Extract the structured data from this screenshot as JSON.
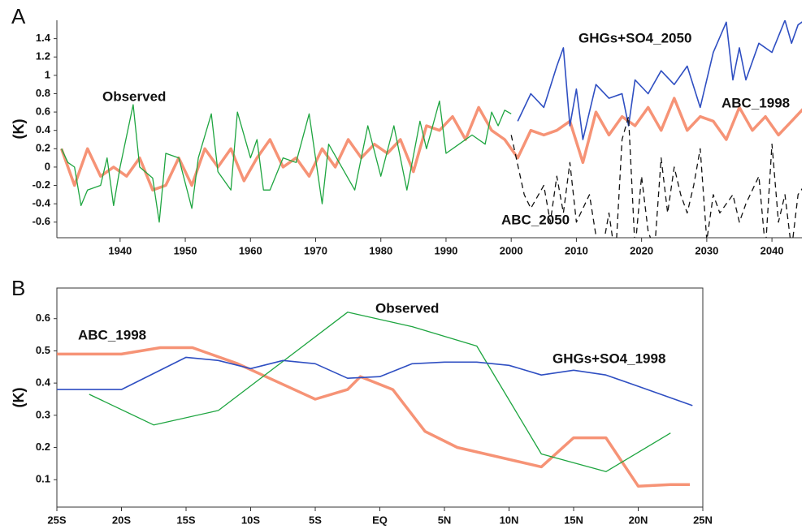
{
  "chart_data": [
    {
      "type": "line",
      "title": "A",
      "ylabel": "(K)",
      "xlim": [
        1930.3,
        2044.6
      ],
      "xticks": [
        1940,
        1950,
        1960,
        1970,
        1980,
        1990,
        2000,
        2010,
        2020,
        2030,
        2040
      ],
      "ylim": [
        -0.77,
        1.6
      ],
      "yticks": [
        -0.6,
        -0.4,
        -0.2,
        0,
        0.2,
        0.4,
        0.6,
        0.8,
        1,
        1.2,
        1.4
      ],
      "series": [
        {
          "name": "ABC_1998",
          "color": "#f4805e",
          "linestyle": "solid",
          "x": [
            1931,
            1933,
            1935,
            1937,
            1939,
            1941,
            1943,
            1945,
            1947,
            1949,
            1951,
            1953,
            1955,
            1957,
            1959,
            1961,
            1963,
            1965,
            1967,
            1969,
            1971,
            1973,
            1975,
            1977,
            1979,
            1981,
            1983,
            1985,
            1987,
            1989,
            1991,
            1993,
            1995,
            1997,
            1999,
            2001,
            2003,
            2005,
            2007,
            2009,
            2011,
            2013,
            2015,
            2017,
            2019,
            2021,
            2023,
            2025,
            2027,
            2029,
            2031,
            2033,
            2035,
            2037,
            2039,
            2041,
            2043,
            2045
          ],
          "values": [
            0.2,
            -0.2,
            0.2,
            -0.1,
            0.0,
            -0.1,
            0.1,
            -0.25,
            -0.2,
            0.1,
            -0.2,
            0.2,
            0.0,
            0.2,
            -0.15,
            0.1,
            0.3,
            0.0,
            0.1,
            -0.1,
            0.2,
            0.0,
            0.3,
            0.1,
            0.25,
            0.15,
            0.3,
            -0.05,
            0.45,
            0.4,
            0.55,
            0.3,
            0.65,
            0.4,
            0.3,
            0.1,
            0.4,
            0.35,
            0.4,
            0.5,
            0.05,
            0.6,
            0.35,
            0.55,
            0.45,
            0.65,
            0.4,
            0.75,
            0.4,
            0.55,
            0.5,
            0.3,
            0.65,
            0.4,
            0.55,
            0.35,
            0.5,
            0.65
          ]
        },
        {
          "name": "Observed",
          "color": "#1ea540",
          "linestyle": "solid",
          "x": [
            1931,
            1932,
            1933,
            1934,
            1935,
            1937,
            1938,
            1939,
            1940,
            1942,
            1943,
            1945,
            1946,
            1947,
            1949,
            1951,
            1952,
            1954,
            1955,
            1957,
            1958,
            1960,
            1961,
            1962,
            1963,
            1965,
            1967,
            1969,
            1971,
            1972,
            1974,
            1976,
            1978,
            1980,
            1982,
            1984,
            1986,
            1987,
            1989,
            1990,
            1992,
            1994,
            1996,
            1997,
            1998,
            1999,
            2000
          ],
          "values": [
            0.2,
            0.05,
            0.0,
            -0.42,
            -0.25,
            -0.2,
            0.1,
            -0.42,
            0.0,
            0.68,
            0.0,
            -0.12,
            -0.6,
            0.15,
            0.1,
            -0.45,
            0.1,
            0.58,
            -0.05,
            -0.25,
            0.6,
            0.1,
            0.3,
            -0.25,
            -0.25,
            0.1,
            0.05,
            0.58,
            -0.4,
            0.25,
            0.0,
            -0.25,
            0.45,
            -0.1,
            0.45,
            -0.25,
            0.5,
            0.2,
            0.72,
            0.15,
            0.25,
            0.35,
            0.25,
            0.6,
            0.45,
            0.62,
            0.58
          ]
        },
        {
          "name": "GHGs+SO4_2050",
          "color": "#2f4fc2",
          "linestyle": "solid",
          "x": [
            2001,
            2003,
            2005,
            2007,
            2008,
            2009,
            2010,
            2011,
            2013,
            2015,
            2017,
            2018,
            2019,
            2021,
            2023,
            2025,
            2027,
            2029,
            2031,
            2033,
            2034,
            2035,
            2036,
            2038,
            2040,
            2042,
            2043,
            2044,
            2045
          ],
          "values": [
            0.5,
            0.8,
            0.65,
            1.1,
            1.3,
            0.45,
            0.85,
            0.3,
            0.9,
            0.75,
            0.8,
            0.45,
            0.95,
            0.8,
            1.05,
            0.9,
            1.1,
            0.65,
            1.25,
            1.58,
            0.95,
            1.3,
            0.95,
            1.35,
            1.25,
            1.6,
            1.35,
            1.55,
            1.6
          ]
        },
        {
          "name": "ABC_2050",
          "color": "#111111",
          "linestyle": "dashed",
          "x": [
            2000,
            2002,
            2003,
            2005,
            2006,
            2007,
            2008,
            2009,
            2010,
            2012,
            2013,
            2014,
            2015,
            2016,
            2017,
            2018,
            2019,
            2020,
            2021,
            2022,
            2023,
            2024,
            2025,
            2026,
            2027,
            2028,
            2029,
            2030,
            2031,
            2032,
            2034,
            2035,
            2036,
            2038,
            2039,
            2040,
            2041,
            2042,
            2043,
            2044,
            2045
          ],
          "values": [
            0.35,
            -0.3,
            -0.45,
            -0.2,
            -0.6,
            -0.1,
            -0.5,
            0.05,
            -0.6,
            -0.3,
            -0.75,
            -0.9,
            -0.5,
            -1.0,
            0.3,
            0.55,
            -0.9,
            -0.1,
            -0.7,
            -0.9,
            0.1,
            -0.5,
            0.0,
            -0.3,
            -0.5,
            -0.2,
            0.2,
            -0.8,
            -0.3,
            -0.5,
            -0.3,
            -0.6,
            -0.4,
            -0.1,
            -0.9,
            0.25,
            -0.6,
            -0.3,
            -0.9,
            -0.3,
            -0.2
          ]
        }
      ]
    },
    {
      "type": "line",
      "title": "B",
      "ylabel": "(K)",
      "xlim": [
        -25,
        25
      ],
      "xticks": [
        {
          "value": -25,
          "label": "25S"
        },
        {
          "value": -20,
          "label": "20S"
        },
        {
          "value": -15,
          "label": "15S"
        },
        {
          "value": -10,
          "label": "10S"
        },
        {
          "value": -5,
          "label": "5S"
        },
        {
          "value": 0,
          "label": "EQ"
        },
        {
          "value": 5,
          "label": "5N"
        },
        {
          "value": 10,
          "label": "10N"
        },
        {
          "value": 15,
          "label": "15N"
        },
        {
          "value": 20,
          "label": "20N"
        },
        {
          "value": 25,
          "label": "25N"
        }
      ],
      "ylim": [
        0.015,
        0.695
      ],
      "yticks": [
        0.1,
        0.2,
        0.3,
        0.4,
        0.5,
        0.6
      ],
      "series": [
        {
          "name": "ABC_1998",
          "color": "#f4805e",
          "linestyle": "solid",
          "x": [
            -25,
            -20,
            -17,
            -14.5,
            -11,
            -5,
            -2.5,
            -1.5,
            1,
            3.5,
            6,
            12.5,
            15,
            17.5,
            20,
            22.5,
            24
          ],
          "values": [
            0.49,
            0.49,
            0.51,
            0.51,
            0.46,
            0.35,
            0.38,
            0.42,
            0.38,
            0.25,
            0.2,
            0.14,
            0.23,
            0.23,
            0.08,
            0.085,
            0.085
          ]
        },
        {
          "name": "Observed",
          "color": "#1ea540",
          "linestyle": "solid",
          "x": [
            -22.5,
            -17.5,
            -12.5,
            -2.5,
            2.5,
            7.5,
            12.5,
            17.5,
            22.5
          ],
          "values": [
            0.365,
            0.27,
            0.315,
            0.62,
            0.575,
            0.515,
            0.18,
            0.125,
            0.245
          ]
        },
        {
          "name": "GHGs+SO4_1998",
          "color": "#2f4fc2",
          "linestyle": "solid",
          "x": [
            -25,
            -20,
            -15,
            -12.5,
            -10,
            -7.5,
            -5,
            -2.5,
            0,
            2.5,
            5,
            7.5,
            10,
            12.5,
            15,
            17.5,
            20,
            24.2
          ],
          "values": [
            0.38,
            0.38,
            0.48,
            0.47,
            0.445,
            0.47,
            0.46,
            0.415,
            0.42,
            0.46,
            0.465,
            0.465,
            0.455,
            0.425,
            0.44,
            0.425,
            0.39,
            0.33
          ]
        }
      ]
    }
  ]
}
